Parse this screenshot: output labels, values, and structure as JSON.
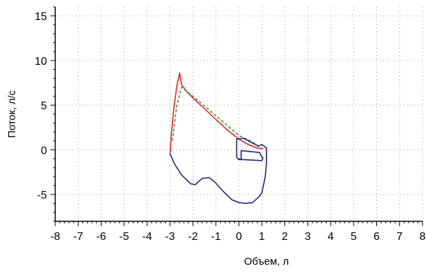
{
  "chart_data": {
    "type": "line",
    "xlabel": "Объем, л",
    "ylabel": "Поток, л/с",
    "xlim": [
      -8,
      8
    ],
    "ylim": [
      -8,
      16
    ],
    "x_ticks": [
      "-8",
      "-7",
      "-6",
      "-5",
      "-4",
      "-3",
      "-2",
      "-1",
      "0",
      "1",
      "2",
      "3",
      "4",
      "5",
      "6",
      "7",
      "8"
    ],
    "y_ticks": [
      "15",
      "10",
      "5",
      "0",
      "-5"
    ],
    "y_tick_values": [
      15,
      10,
      5,
      0,
      -5
    ],
    "grid": true,
    "series": [
      {
        "color": "#e82020",
        "style": "solid",
        "x": [
          -3.0,
          -2.95,
          -2.85,
          -2.7,
          -2.58,
          -2.5,
          -2.3,
          -2.0,
          -1.5,
          -1.0,
          -0.5,
          0.0,
          0.4,
          0.8,
          1.05
        ],
        "y": [
          -0.5,
          1.5,
          4.2,
          7.2,
          8.6,
          7.3,
          6.6,
          5.8,
          4.6,
          3.4,
          2.2,
          1.2,
          0.6,
          0.2,
          0.1
        ]
      },
      {
        "color": "#2a9a2a",
        "style": "dashed",
        "x": [
          -2.9,
          -2.7,
          -2.5,
          -2.0,
          -1.0,
          0.0,
          0.5,
          1.0
        ],
        "y": [
          1.0,
          5.0,
          7.0,
          6.0,
          3.8,
          1.6,
          1.0,
          0.2
        ]
      },
      {
        "color": "#1a237e",
        "style": "solid",
        "x": [
          -3.0,
          -2.95,
          -2.8,
          -2.5,
          -2.1,
          -1.9,
          -1.6,
          -1.3,
          -1.05,
          -0.7,
          -0.3,
          0.0,
          0.3,
          0.6,
          0.9,
          1.0,
          1.15,
          1.2,
          1.2,
          1.0,
          0.85,
          0.2,
          -0.1,
          -0.1,
          0.0,
          0.1,
          0.1,
          0.9,
          1.0,
          1.05,
          1.0,
          0.2,
          0.0
        ],
        "y": [
          -0.5,
          -0.7,
          -1.6,
          -2.8,
          -3.8,
          -3.9,
          -3.2,
          -3.1,
          -3.6,
          -4.6,
          -5.6,
          -5.9,
          -6.0,
          -5.9,
          -5.2,
          -4.8,
          -3.0,
          -1.5,
          0.2,
          0.6,
          0.4,
          1.3,
          1.2,
          -0.8,
          -1.1,
          -1.1,
          -0.1,
          -0.3,
          -0.8,
          -0.9,
          -1.2,
          -1.1,
          -1.0
        ]
      }
    ]
  }
}
